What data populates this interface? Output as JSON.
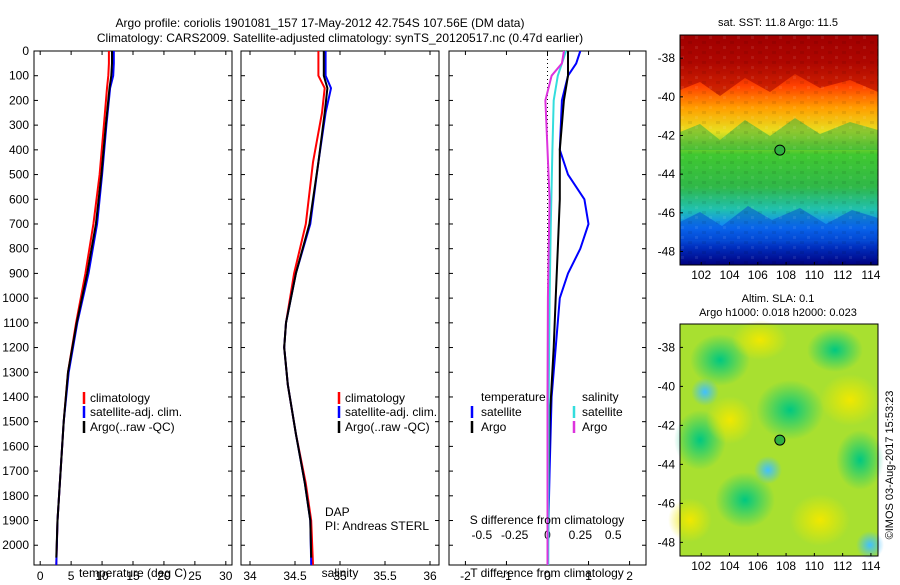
{
  "title": {
    "line1": "Argo profile: coriolis 1901081_157 17-May-2012 42.754S 107.56E (DM data)",
    "line2": "Climatology: CARS2009. Satellite-adjusted climatology: synTS_20120517.nc (0.47d earlier)"
  },
  "stamp": "©IMOS 03-Aug-2017 15:53:23",
  "colors": {
    "climatology": "#ff0000",
    "satellite": "#0000ff",
    "argo": "#000000",
    "s_satellite": "#33dddd",
    "s_argo": "#dd33dd"
  },
  "chart_data": [
    {
      "type": "line",
      "id": "temperature",
      "xlabel": "temperature (deg C)",
      "ylabel": "",
      "xlim": [
        -1,
        31
      ],
      "ylim": [
        0,
        2080
      ],
      "xticks": [
        0,
        5,
        10,
        15,
        20,
        25,
        30
      ],
      "yticks": [
        0,
        100,
        200,
        300,
        400,
        500,
        600,
        700,
        800,
        900,
        1000,
        1100,
        1200,
        1300,
        1400,
        1500,
        1600,
        1700,
        1800,
        1900,
        2000
      ],
      "legend": [
        "climatology",
        "satellite-adj. clim.",
        "Argo(..raw -QC)"
      ],
      "series": [
        {
          "name": "climatology",
          "color": "#ff0000",
          "points": [
            [
              11.1,
              0
            ],
            [
              11.1,
              50
            ],
            [
              11.0,
              100
            ],
            [
              10.8,
              150
            ],
            [
              10.3,
              300
            ],
            [
              9.6,
              500
            ],
            [
              8.6,
              700
            ],
            [
              7.3,
              900
            ],
            [
              5.8,
              1100
            ],
            [
              4.5,
              1300
            ],
            [
              3.8,
              1500
            ],
            [
              3.3,
              1700
            ],
            [
              2.8,
              1900
            ],
            [
              2.6,
              2080
            ]
          ]
        },
        {
          "name": "satellite-adj. clim.",
          "color": "#0000ff",
          "points": [
            [
              11.9,
              0
            ],
            [
              11.9,
              50
            ],
            [
              11.8,
              100
            ],
            [
              11.3,
              150
            ],
            [
              10.7,
              300
            ],
            [
              10.0,
              500
            ],
            [
              9.2,
              700
            ],
            [
              7.8,
              900
            ],
            [
              6.0,
              1100
            ],
            [
              4.6,
              1300
            ],
            [
              3.8,
              1500
            ],
            [
              3.3,
              1700
            ],
            [
              2.8,
              1900
            ],
            [
              2.6,
              2080
            ]
          ]
        },
        {
          "name": "Argo(..raw -QC)",
          "color": "#000000",
          "points": [
            [
              11.6,
              0
            ],
            [
              11.6,
              50
            ],
            [
              11.5,
              100
            ],
            [
              11.2,
              150
            ],
            [
              10.6,
              300
            ],
            [
              9.9,
              500
            ],
            [
              9.0,
              700
            ],
            [
              7.6,
              900
            ],
            [
              5.9,
              1100
            ],
            [
              4.5,
              1300
            ],
            [
              3.8,
              1500
            ],
            [
              3.3,
              1700
            ],
            [
              2.8,
              1900
            ],
            [
              2.6,
              2050
            ]
          ]
        }
      ]
    },
    {
      "type": "line",
      "id": "salinity",
      "xlabel": "salinity",
      "xlim": [
        33.9,
        36.1
      ],
      "ylim": [
        0,
        2080
      ],
      "xticks": [
        34,
        34.5,
        35,
        35.5,
        36
      ],
      "legend": [
        "climatology",
        "satellite-adj. clim.",
        "Argo(..raw -QC)"
      ],
      "annotation": {
        "line1": "DAP",
        "line2": "PI: Andreas STERL"
      },
      "series": [
        {
          "name": "climatology",
          "color": "#ff0000",
          "points": [
            [
              34.76,
              0
            ],
            [
              34.76,
              100
            ],
            [
              34.83,
              150
            ],
            [
              34.8,
              250
            ],
            [
              34.7,
              450
            ],
            [
              34.62,
              700
            ],
            [
              34.49,
              900
            ],
            [
              34.4,
              1100
            ],
            [
              34.38,
              1200
            ],
            [
              34.42,
              1350
            ],
            [
              34.51,
              1550
            ],
            [
              34.62,
              1750
            ],
            [
              34.68,
              1900
            ],
            [
              34.7,
              2080
            ]
          ]
        },
        {
          "name": "satellite-adj. clim.",
          "color": "#0000ff",
          "points": [
            [
              34.84,
              0
            ],
            [
              34.84,
              100
            ],
            [
              34.9,
              150
            ],
            [
              34.84,
              250
            ],
            [
              34.76,
              450
            ],
            [
              34.67,
              700
            ],
            [
              34.51,
              900
            ],
            [
              34.4,
              1100
            ],
            [
              34.38,
              1200
            ],
            [
              34.42,
              1350
            ],
            [
              34.51,
              1550
            ],
            [
              34.61,
              1750
            ],
            [
              34.67,
              1900
            ],
            [
              34.68,
              2080
            ]
          ]
        },
        {
          "name": "Argo(..raw -QC)",
          "color": "#000000",
          "points": [
            [
              34.82,
              0
            ],
            [
              34.82,
              100
            ],
            [
              34.86,
              150
            ],
            [
              34.83,
              250
            ],
            [
              34.76,
              450
            ],
            [
              34.66,
              700
            ],
            [
              34.51,
              900
            ],
            [
              34.4,
              1100
            ],
            [
              34.38,
              1200
            ],
            [
              34.42,
              1350
            ],
            [
              34.51,
              1550
            ],
            [
              34.61,
              1750
            ],
            [
              34.67,
              1900
            ],
            [
              34.68,
              2050
            ]
          ]
        }
      ]
    },
    {
      "type": "line",
      "id": "difference",
      "xlabel": "T difference from climatology",
      "xlabel2": "S difference from climatology",
      "xlim": [
        -2.4,
        2.4
      ],
      "ylim": [
        0,
        2080
      ],
      "xticks": [
        -2,
        -1,
        0,
        1,
        2
      ],
      "xticks2": [
        "-0.5",
        "-0.25",
        "0",
        "0.25",
        "0.5"
      ],
      "legend_temperature": {
        "title": "temperature",
        "items": [
          "satellite",
          "Argo"
        ]
      },
      "legend_salinity": {
        "title": "salinity",
        "items": [
          "satellite",
          "Argo"
        ]
      },
      "series": [
        {
          "name": "temperature satellite",
          "color": "#0000ff",
          "points": [
            [
              0.8,
              0
            ],
            [
              0.7,
              50
            ],
            [
              0.5,
              100
            ],
            [
              0.35,
              200
            ],
            [
              0.3,
              400
            ],
            [
              0.5,
              500
            ],
            [
              0.9,
              600
            ],
            [
              1.0,
              700
            ],
            [
              0.8,
              800
            ],
            [
              0.5,
              900
            ],
            [
              0.3,
              1000
            ],
            [
              0.2,
              1200
            ],
            [
              0.1,
              1400
            ],
            [
              0.05,
              1700
            ],
            [
              0.0,
              2080
            ]
          ]
        },
        {
          "name": "temperature Argo",
          "color": "#000000",
          "points": [
            [
              0.5,
              0
            ],
            [
              0.5,
              50
            ],
            [
              0.5,
              100
            ],
            [
              0.4,
              200
            ],
            [
              0.3,
              400
            ],
            [
              0.3,
              600
            ],
            [
              0.25,
              800
            ],
            [
              0.2,
              1000
            ],
            [
              0.15,
              1200
            ],
            [
              0.05,
              1500
            ],
            [
              0.0,
              2050
            ]
          ]
        },
        {
          "name": "salinity satellite",
          "color": "#33dddd",
          "points": [
            [
              0.45,
              0
            ],
            [
              0.35,
              50
            ],
            [
              0.25,
              100
            ],
            [
              0.15,
              200
            ],
            [
              0.12,
              400
            ],
            [
              0.08,
              700
            ],
            [
              0.05,
              1000
            ],
            [
              0.03,
              1400
            ],
            [
              0.02,
              2080
            ]
          ]
        },
        {
          "name": "salinity Argo",
          "color": "#dd33dd",
          "points": [
            [
              0.4,
              0
            ],
            [
              0.35,
              50
            ],
            [
              0.1,
              100
            ],
            [
              -0.05,
              200
            ],
            [
              0.0,
              400
            ],
            [
              0.05,
              600
            ],
            [
              0.03,
              800
            ],
            [
              0.01,
              1000
            ],
            [
              0.0,
              1400
            ],
            [
              0.0,
              2080
            ]
          ]
        }
      ]
    },
    {
      "type": "heatmap",
      "id": "sst",
      "title": "sat. SST: 11.8 Argo: 11.5",
      "xlim": [
        100.5,
        114.5
      ],
      "ylim": [
        -48.7,
        -36.8
      ],
      "xticks": [
        102,
        104,
        106,
        108,
        110,
        112,
        114
      ],
      "yticks": [
        -38,
        -40,
        -42,
        -44,
        -46,
        -48
      ],
      "marker": [
        107.56,
        -42.754
      ]
    },
    {
      "type": "heatmap",
      "id": "sla",
      "title": "Altim. SLA: 0.1",
      "title2": "Argo h1000: 0.018 h2000: 0.023",
      "xlim": [
        100.5,
        114.5
      ],
      "ylim": [
        -48.7,
        -36.8
      ],
      "xticks": [
        102,
        104,
        106,
        108,
        110,
        112,
        114
      ],
      "yticks": [
        -38,
        -40,
        -42,
        -44,
        -46,
        -48
      ],
      "marker": [
        107.56,
        -42.754
      ]
    }
  ]
}
